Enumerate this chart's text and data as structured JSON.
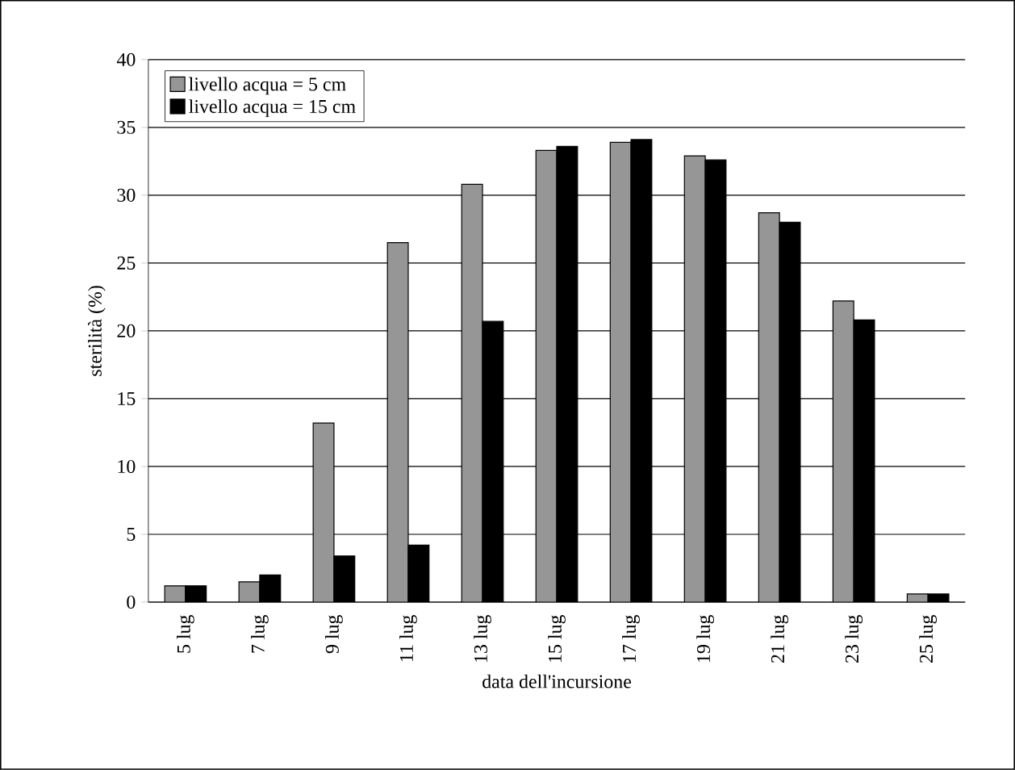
{
  "chart_data": {
    "type": "bar",
    "xlabel": "data dell'incursione",
    "ylabel": "sterilità (%)",
    "categories": [
      "5 lug",
      "7 lug",
      "9 lug",
      "11 lug",
      "13 lug",
      "15 lug",
      "17 lug",
      "19 lug",
      "21 lug",
      "23 lug",
      "25 lug"
    ],
    "series": [
      {
        "name": "livello acqua = 5 cm",
        "color": "#969696",
        "values": [
          1.2,
          1.5,
          13.2,
          26.5,
          30.8,
          33.3,
          33.9,
          32.9,
          28.7,
          22.2,
          0.6
        ]
      },
      {
        "name": "livello acqua = 15 cm",
        "color": "#000000",
        "values": [
          1.2,
          2.0,
          3.4,
          4.2,
          20.7,
          33.6,
          34.1,
          32.6,
          28.0,
          20.8,
          0.6
        ]
      }
    ],
    "ylim": [
      0,
      40
    ],
    "yticks": [
      0,
      5,
      10,
      15,
      20,
      25,
      30,
      35,
      40
    ],
    "grid": "y",
    "legend": "top left"
  }
}
